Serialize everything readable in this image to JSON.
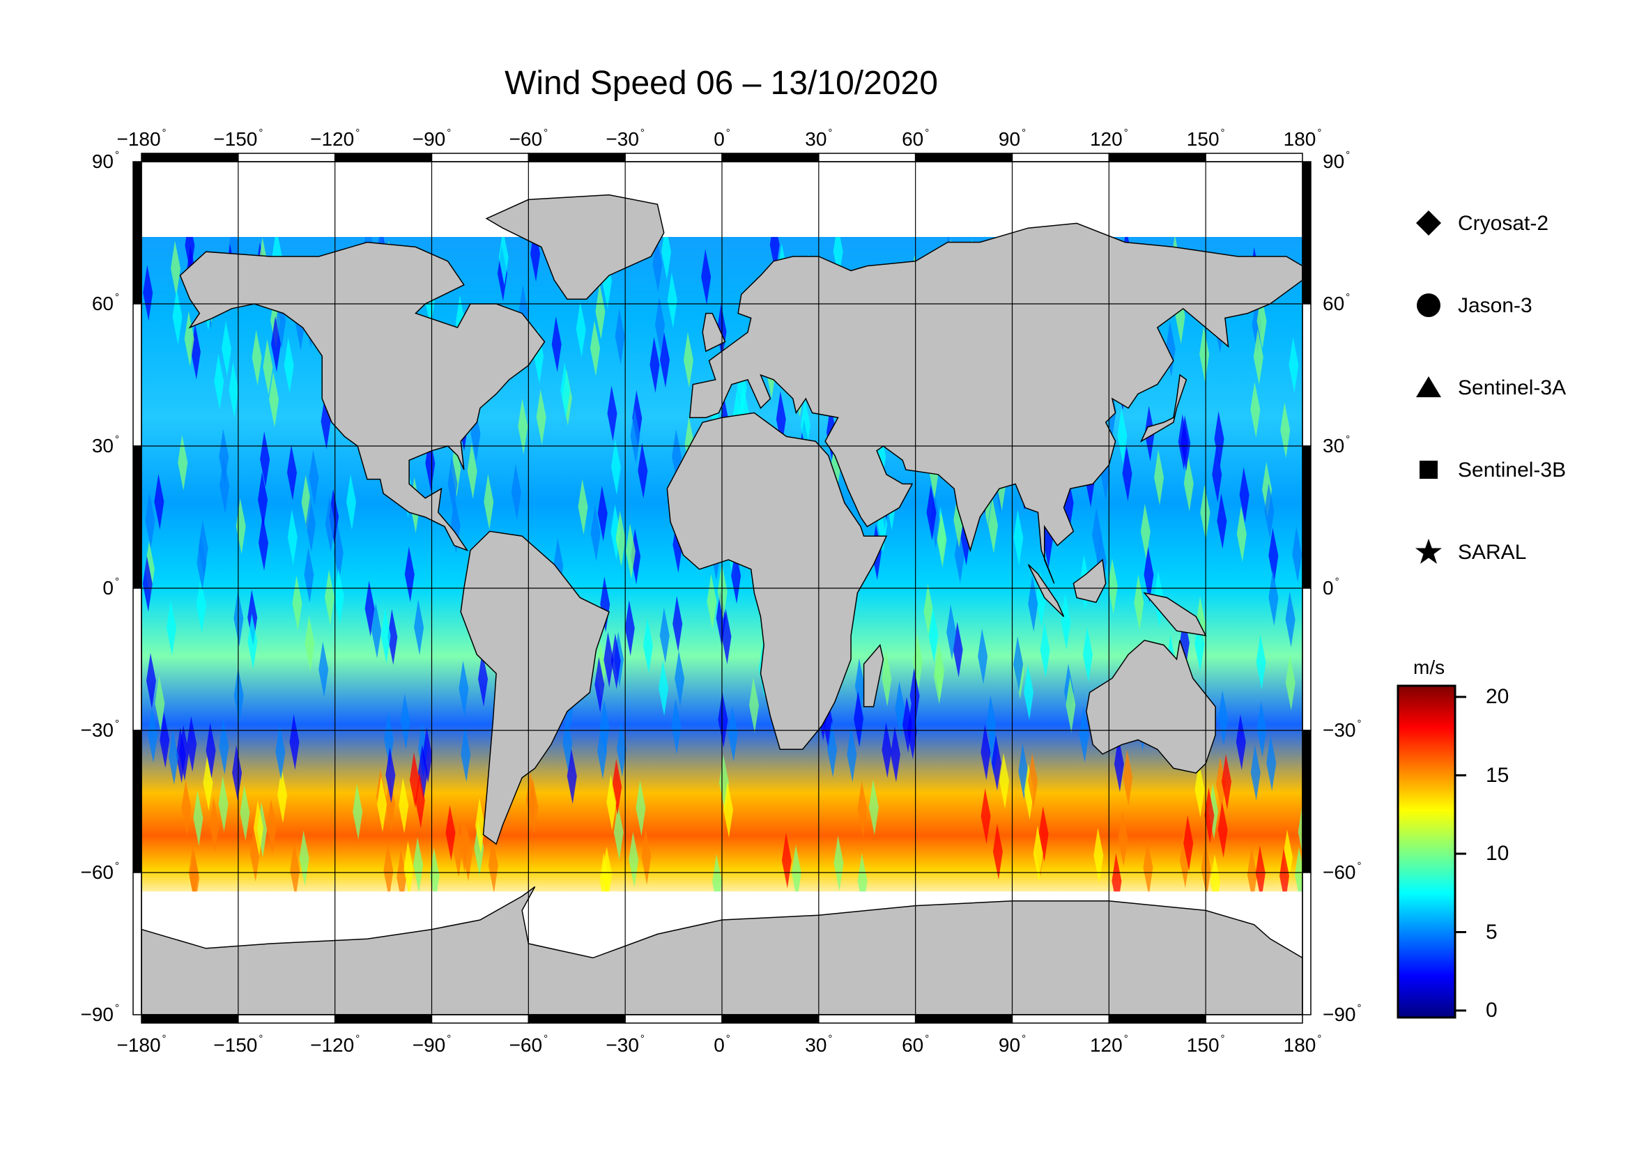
{
  "title": "Wind Speed 06 – 13/10/2020",
  "map": {
    "projection": "equirectangular",
    "lon_range": [
      -180,
      180
    ],
    "lat_range": [
      -90,
      90
    ],
    "lon_ticks": [
      "-180",
      "-150",
      "-120",
      "-90",
      "-60",
      "-30",
      "0",
      "30",
      "60",
      "90",
      "120",
      "150",
      "180"
    ],
    "lat_ticks": [
      "90",
      "60",
      "30",
      "0",
      "-30",
      "-60",
      "-90"
    ],
    "degree_symbol": "°",
    "land_color": "#c0c0c0",
    "ice_color": "#ffffff",
    "coastline_color": "#000000",
    "grid": true
  },
  "legend": {
    "items": [
      {
        "label": "Cryosat-2",
        "icon": "diamond-icon"
      },
      {
        "label": "Jason-3",
        "icon": "circle-icon"
      },
      {
        "label": "Sentinel-3A",
        "icon": "triangle-icon"
      },
      {
        "label": "Sentinel-3B",
        "icon": "square-icon"
      },
      {
        "label": "SARAL",
        "icon": "star-icon"
      }
    ]
  },
  "colorbar": {
    "unit": "m/s",
    "min": 0,
    "max": 20,
    "ticks": [
      "20",
      "15",
      "10",
      "5",
      "0"
    ],
    "colormap": "jet",
    "colors": [
      "#00007f",
      "#0000ff",
      "#007fff",
      "#00ffff",
      "#7fff7f",
      "#ffff00",
      "#ff7f00",
      "#ff0000",
      "#7f0000"
    ]
  }
}
